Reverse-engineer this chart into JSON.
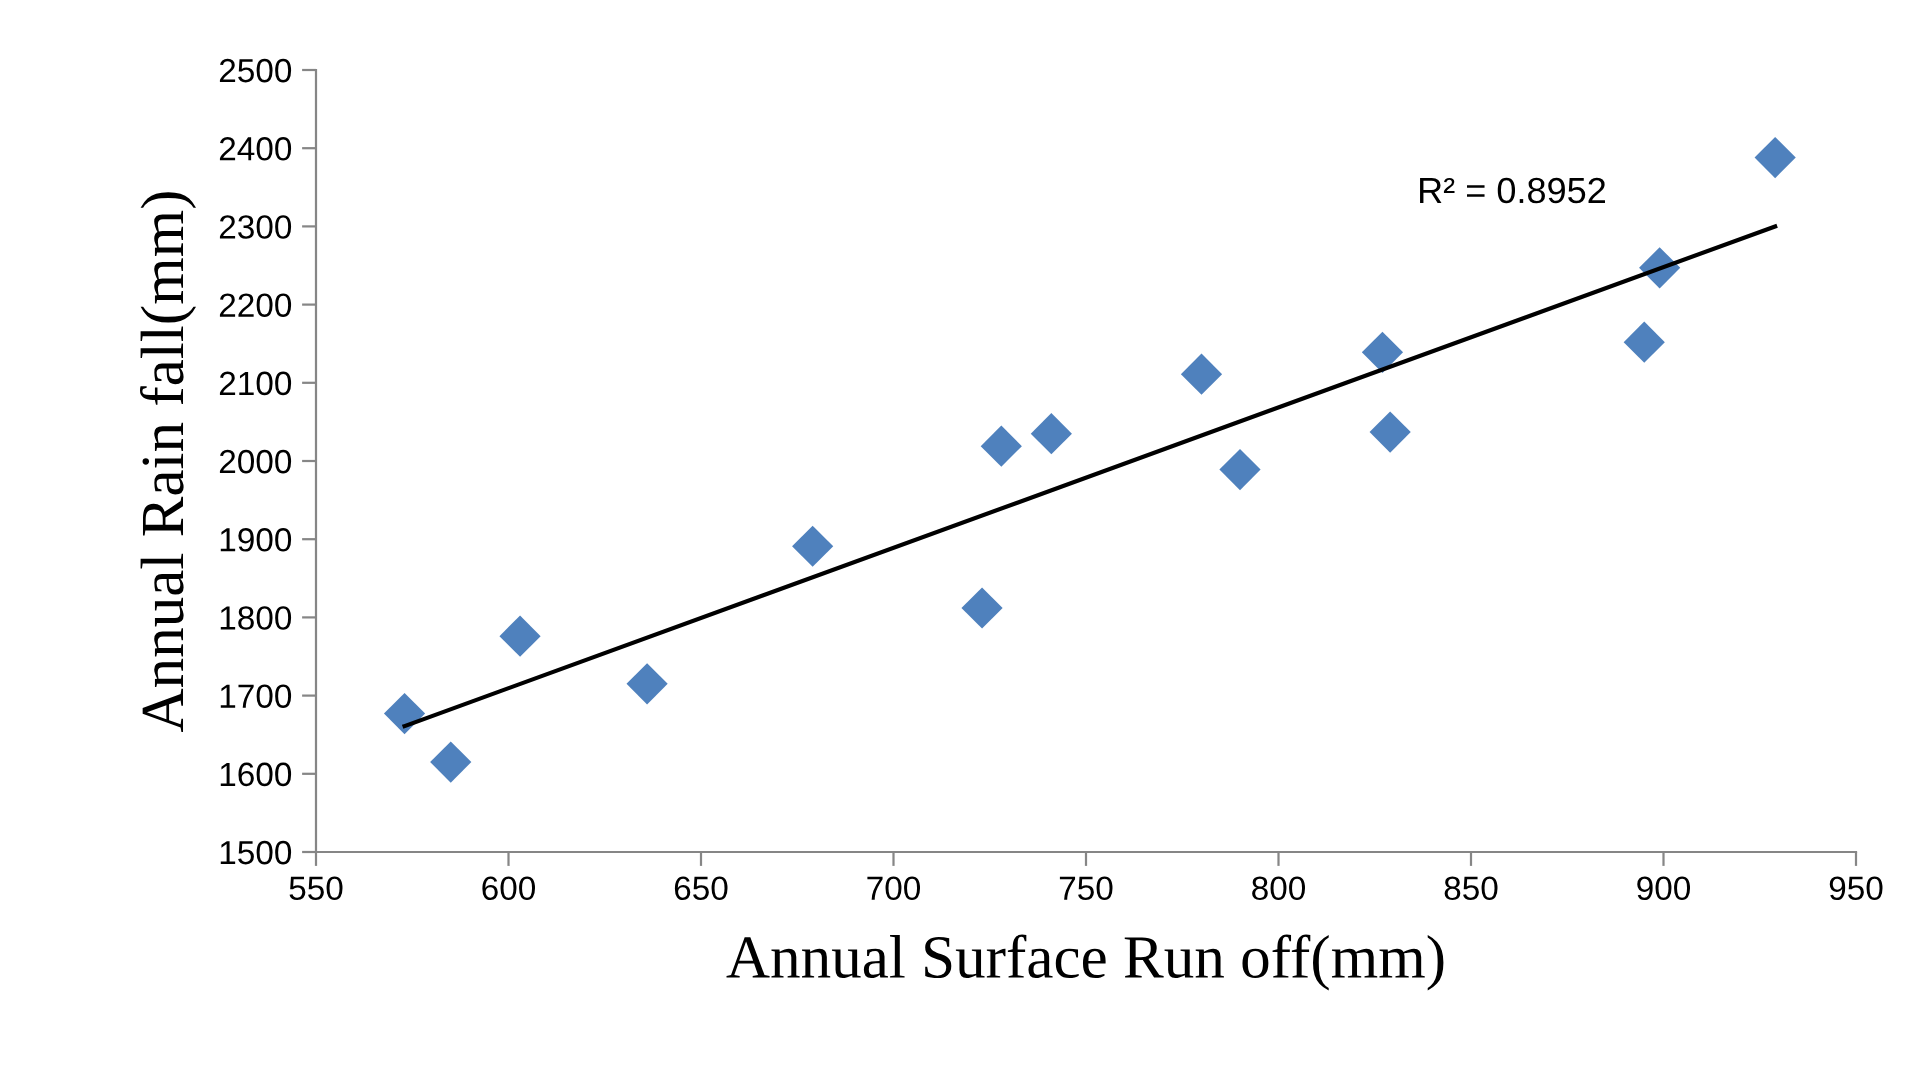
{
  "chart_data": {
    "type": "scatter",
    "xlabel": "Annual Surface Run off(mm)",
    "ylabel": "Annual Rain fall(mm)",
    "x": [
      573,
      585,
      603,
      636,
      679,
      723,
      728,
      741,
      780,
      790,
      827,
      829,
      895,
      899,
      929
    ],
    "series": [
      {
        "color": "#4f81bd",
        "marker": "diamond",
        "values": [
          1677,
          1615,
          1776,
          1715,
          1891,
          1812,
          2019,
          2035,
          2111,
          1989,
          2139,
          2037,
          2152,
          2247,
          2388
        ]
      },
      {
        "type": "line",
        "color": "#000000",
        "line_style": "solid",
        "marker": "none",
        "x": [
          573,
          929
        ],
        "values": [
          1661,
          2300
        ]
      }
    ],
    "annotations": [
      "R² = 0.8952"
    ],
    "xlim": [
      550,
      950
    ],
    "xticks": [
      550,
      600,
      650,
      700,
      750,
      800,
      850,
      900,
      950
    ],
    "ylim": [
      1500,
      2500
    ],
    "yticks": [
      1500,
      1600,
      1700,
      1800,
      1900,
      2000,
      2100,
      2200,
      2300,
      2400,
      2500
    ],
    "grid": false,
    "legend": false
  }
}
